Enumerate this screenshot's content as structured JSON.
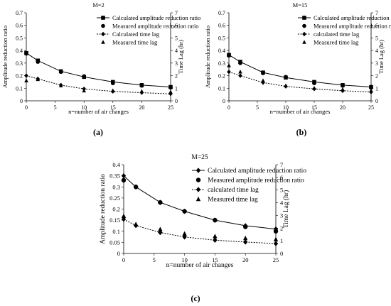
{
  "figure": {
    "captions": [
      "(a)",
      "(b)",
      "(c)"
    ]
  },
  "chart_data": [
    {
      "type": "line",
      "title": "M=2",
      "xlabel": "n=number of air changes",
      "ylabel": "Amplitude reduction ratio",
      "y2label": "Time Lag (hr)",
      "xlim": [
        0,
        25
      ],
      "ylim": [
        0,
        0.7
      ],
      "y2lim": [
        0,
        7
      ],
      "x_ticks": [
        0,
        5,
        10,
        15,
        20,
        25
      ],
      "y_ticks": [
        0,
        0.1,
        0.2,
        0.3,
        0.4,
        0.5,
        0.6,
        0.7
      ],
      "y2_ticks": [
        0,
        1,
        2,
        3,
        4,
        5,
        6,
        7
      ],
      "grid": false,
      "legend_position": "top-right",
      "series": [
        {
          "name": "Calculated amplitude reduction ratio",
          "axis": "left",
          "style": "solid-line",
          "marker": "square",
          "x": [
            0,
            2,
            6,
            10,
            15,
            20,
            25
          ],
          "values": [
            0.38,
            0.32,
            0.235,
            0.19,
            0.15,
            0.125,
            0.11
          ]
        },
        {
          "name": "Measured amplitude reduction ratio",
          "axis": "left",
          "style": "markers",
          "marker": "circle",
          "x": [
            0,
            2,
            6,
            10,
            15,
            20,
            25
          ],
          "values": [
            0.375,
            0.31,
            0.23,
            0.195,
            0.14,
            0.12,
            0.105
          ]
        },
        {
          "name": "Calculated time lag",
          "axis": "right",
          "style": "dotted-line",
          "marker": "diamond",
          "x": [
            0,
            2,
            6,
            10,
            15,
            20,
            25
          ],
          "values": [
            2.0,
            1.75,
            1.25,
            0.95,
            0.75,
            0.65,
            0.55
          ]
        },
        {
          "name": "Measured time lag",
          "axis": "right",
          "style": "markers",
          "marker": "triangle",
          "x": [
            0,
            2,
            6,
            10,
            15,
            20,
            25
          ],
          "values": [
            1.6,
            1.7,
            1.2,
            0.8,
            0.8,
            0.75,
            0.7
          ]
        }
      ]
    },
    {
      "type": "line",
      "title": "M=15",
      "xlabel": "n=number of air changes",
      "ylabel": "Amplitude reduction ratio",
      "y2label": "Time Lag (hr)",
      "xlim": [
        0,
        25
      ],
      "ylim": [
        0,
        0.7
      ],
      "y2lim": [
        0,
        7
      ],
      "x_ticks": [
        0,
        5,
        10,
        15,
        20,
        25
      ],
      "y_ticks": [
        0,
        0.1,
        0.2,
        0.3,
        0.4,
        0.5,
        0.6,
        0.7
      ],
      "y2_ticks": [
        0,
        1,
        2,
        3,
        4,
        5,
        6,
        7
      ],
      "grid": false,
      "legend_position": "top-right",
      "series": [
        {
          "name": "Calculated amplitude reduction ratio",
          "axis": "left",
          "style": "solid-line",
          "marker": "square",
          "x": [
            0,
            2,
            6,
            10,
            15,
            20,
            25
          ],
          "values": [
            0.365,
            0.31,
            0.225,
            0.185,
            0.15,
            0.125,
            0.11
          ]
        },
        {
          "name": "Measured amplitude reduction ratio",
          "axis": "left",
          "style": "markers",
          "marker": "circle",
          "x": [
            0,
            2,
            6,
            10,
            15,
            20,
            25
          ],
          "values": [
            0.36,
            0.3,
            0.22,
            0.19,
            0.14,
            0.12,
            0.105
          ]
        },
        {
          "name": "calculated time lag",
          "axis": "right",
          "style": "dotted-line",
          "marker": "diamond",
          "x": [
            0,
            2,
            6,
            10,
            15,
            20,
            25
          ],
          "values": [
            2.3,
            2.0,
            1.45,
            1.15,
            0.95,
            0.8,
            0.7
          ]
        },
        {
          "name": "Measured time lag",
          "axis": "right",
          "style": "markers",
          "marker": "triangle",
          "x": [
            0,
            2,
            6,
            10,
            15,
            20,
            25
          ],
          "values": [
            2.8,
            2.3,
            1.6,
            1.2,
            1.0,
            0.9,
            0.8
          ]
        }
      ]
    },
    {
      "type": "line",
      "title": "M=25",
      "xlabel": "n=number of air changes",
      "ylabel": "Amplitude reduction ratio",
      "y2label": "Time Lag (hr)",
      "xlim": [
        0,
        25
      ],
      "ylim": [
        0,
        0.4
      ],
      "y2lim": [
        0,
        7
      ],
      "x_ticks": [
        0,
        5,
        10,
        15,
        20,
        25
      ],
      "y_ticks": [
        0,
        0.05,
        0.1,
        0.15,
        0.2,
        0.25,
        0.3,
        0.35,
        0.4
      ],
      "y2_ticks": [
        0,
        1,
        2,
        3,
        4,
        5,
        6,
        7
      ],
      "grid": false,
      "legend_position": "top-right",
      "series": [
        {
          "name": "Calculated amplitude reduction ratio",
          "axis": "left",
          "style": "solid-line",
          "marker": "diamond",
          "x": [
            0,
            2,
            6,
            10,
            15,
            20,
            25
          ],
          "values": [
            0.35,
            0.3,
            0.23,
            0.19,
            0.15,
            0.125,
            0.11
          ]
        },
        {
          "name": "Measured amplitude reduction ratio",
          "axis": "left",
          "style": "markers",
          "marker": "circle",
          "x": [
            0,
            2,
            6,
            10,
            15,
            20,
            25
          ],
          "values": [
            0.33,
            0.3,
            0.23,
            0.19,
            0.15,
            0.12,
            0.1
          ]
        },
        {
          "name": "calculated time lag",
          "axis": "right",
          "style": "dotted-line",
          "marker": "diamond",
          "x": [
            0,
            2,
            6,
            10,
            15,
            20,
            25
          ],
          "values": [
            2.7,
            2.2,
            1.65,
            1.3,
            1.05,
            0.9,
            0.78
          ]
        },
        {
          "name": "Measured time lag",
          "axis": "right",
          "style": "markers",
          "marker": "triangle",
          "x": [
            0,
            2,
            6,
            10,
            15,
            20,
            25
          ],
          "values": [
            2.95,
            2.3,
            1.9,
            1.55,
            1.35,
            1.2,
            1.1
          ]
        }
      ]
    }
  ]
}
